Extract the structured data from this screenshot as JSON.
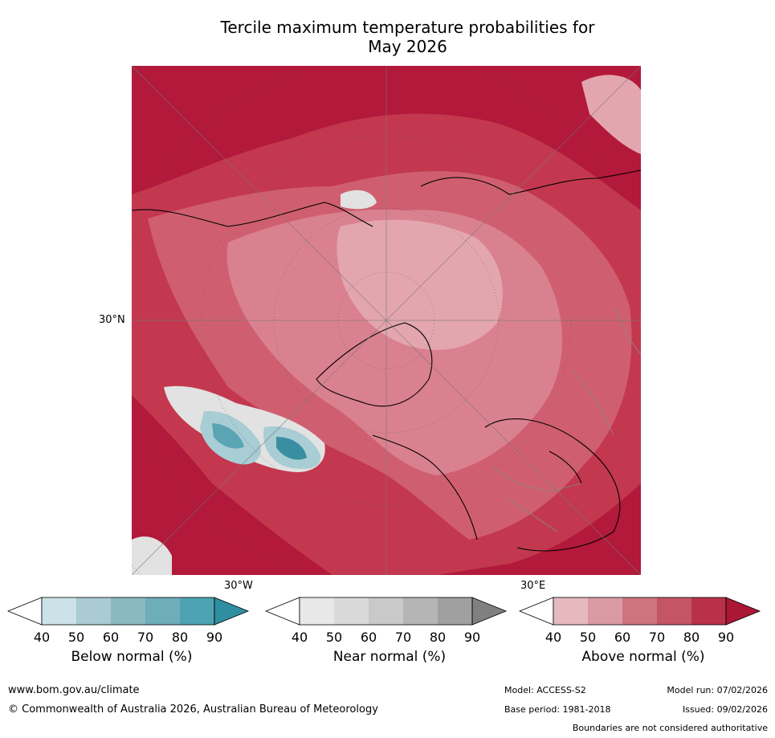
{
  "title_line1": "Tercile maximum temperature probabilities for",
  "title_line2": "May 2026",
  "map": {
    "projection": "north-polar-stereographic",
    "labels": {
      "lat_30n": "30°N",
      "lon_30w": "30°W",
      "lon_30e": "30°E"
    },
    "colors": {
      "above_90": "#b3193a",
      "above_80": "#c3384f",
      "above_70": "#cf5f70",
      "above_60": "#da8190",
      "above_50": "#e3a6ae",
      "near_40": "#e2e2e2",
      "below_50": "#a8cdd4",
      "below_70": "#5aa4b4",
      "below_80": "#3a8ea1",
      "coast": "#000000",
      "border": "#888888"
    }
  },
  "colorbars": [
    {
      "label": "Below normal (%)",
      "ticks": [
        "40",
        "50",
        "60",
        "70",
        "80",
        "90"
      ],
      "colors": [
        "#ffffff",
        "#cbe2e8",
        "#a9cbd1",
        "#8bb9c1",
        "#6eaeba",
        "#4da3b2",
        "#2f8ea2"
      ]
    },
    {
      "label": "Near normal (%)",
      "ticks": [
        "40",
        "50",
        "60",
        "70",
        "80",
        "90"
      ],
      "colors": [
        "#ffffff",
        "#e8e8e8",
        "#d9d9d9",
        "#c9c9c9",
        "#b5b5b5",
        "#a0a0a0",
        "#808080"
      ]
    },
    {
      "label": "Above normal (%)",
      "ticks": [
        "40",
        "50",
        "60",
        "70",
        "80",
        "90"
      ],
      "colors": [
        "#ffffff",
        "#e6b9bf",
        "#d99aa2",
        "#cd7480",
        "#c45565",
        "#b93149",
        "#ab1735"
      ]
    }
  ],
  "footer": {
    "website": "www.bom.gov.au/climate",
    "copyright": "© Commonwealth of Australia 2026, Australian Bureau of Meteorology",
    "model": "Model: ACCESS-S2",
    "model_run": "Model run: 07/02/2026",
    "base_period": "Base period: 1981-2018",
    "issued": "Issued: 09/02/2026",
    "disclaimer": "Boundaries are not considered authoritative"
  }
}
